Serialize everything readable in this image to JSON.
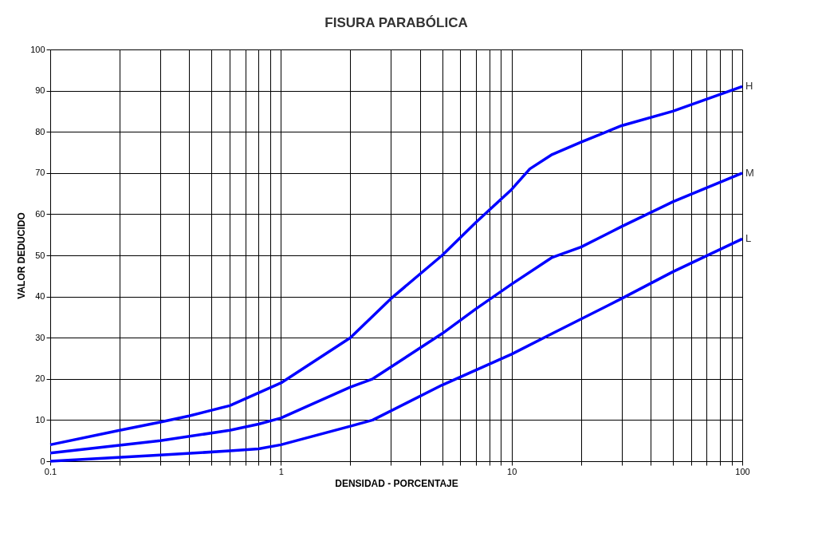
{
  "chart_data": {
    "type": "line",
    "title": "FISURA PARABÓLICA",
    "xlabel": "DENSIDAD - PORCENTAJE",
    "ylabel": "VALOR DEDUCIDO",
    "log": "x",
    "grid": true,
    "legend": false,
    "marker": "none",
    "line_style": "solid",
    "xlim": [
      0.1,
      100
    ],
    "ylim": [
      0,
      100
    ],
    "xticks": [
      0.1,
      {
        "value": 0.2,
        "label": null
      },
      {
        "value": 0.3,
        "label": null
      },
      {
        "value": 0.4,
        "label": null
      },
      {
        "value": 0.5,
        "label": null
      },
      {
        "value": 0.6,
        "label": null
      },
      {
        "value": 0.7,
        "label": null
      },
      {
        "value": 0.8,
        "label": null
      },
      {
        "value": 0.9,
        "label": null
      },
      1,
      {
        "value": 2,
        "label": null
      },
      {
        "value": 3,
        "label": null
      },
      {
        "value": 4,
        "label": null
      },
      {
        "value": 5,
        "label": null
      },
      {
        "value": 6,
        "label": null
      },
      {
        "value": 7,
        "label": null
      },
      {
        "value": 8,
        "label": null
      },
      {
        "value": 9,
        "label": null
      },
      10,
      {
        "value": 20,
        "label": null
      },
      {
        "value": 30,
        "label": null
      },
      {
        "value": 40,
        "label": null
      },
      {
        "value": 50,
        "label": null
      },
      {
        "value": 60,
        "label": null
      },
      {
        "value": 70,
        "label": null
      },
      {
        "value": 80,
        "label": null
      },
      {
        "value": 90,
        "label": null
      },
      100
    ],
    "yticks": [
      0,
      10,
      20,
      30,
      40,
      50,
      60,
      70,
      80,
      90,
      100
    ],
    "series": [
      {
        "name": "H",
        "color": "#0000ff",
        "x": [
          0.1,
          0.2,
          0.3,
          0.4,
          0.6,
          1,
          2,
          3,
          5,
          7,
          10,
          12,
          15,
          20,
          30,
          50,
          100
        ],
        "values": [
          4,
          7.5,
          9.5,
          11,
          13.5,
          19,
          30,
          39.5,
          50,
          58,
          66,
          71,
          74.5,
          77.5,
          81.5,
          85,
          91
        ]
      },
      {
        "name": "M",
        "color": "#0000ff",
        "x": [
          0.1,
          0.3,
          0.6,
          0.8,
          1,
          2,
          2.5,
          5,
          7,
          10,
          15,
          20,
          30,
          50,
          100
        ],
        "values": [
          2,
          5,
          7.5,
          9,
          10.5,
          18,
          20,
          31,
          37,
          43,
          49.5,
          52,
          57,
          63,
          70
        ]
      },
      {
        "name": "L",
        "color": "#0000ff",
        "x": [
          0.1,
          0.3,
          0.6,
          0.8,
          1,
          2,
          2.5,
          5,
          10,
          15,
          30,
          50,
          100
        ],
        "values": [
          0,
          1.5,
          2.5,
          3,
          4,
          8.5,
          10,
          18.5,
          26,
          31,
          39.5,
          46,
          54
        ]
      }
    ]
  }
}
